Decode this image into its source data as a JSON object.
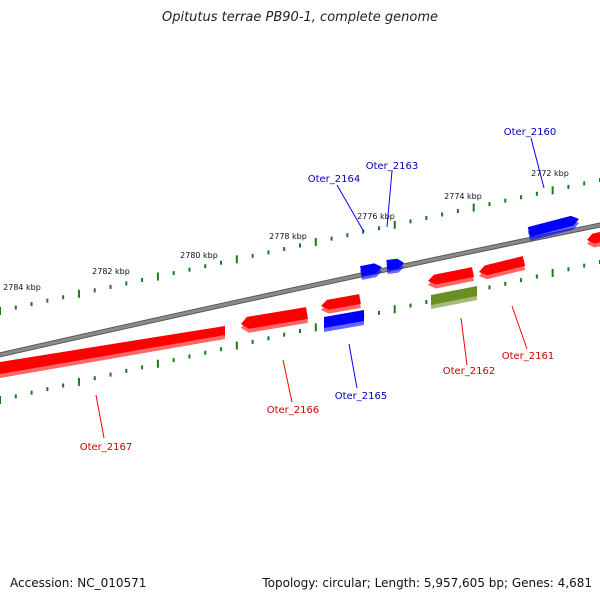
{
  "title": "Opitutus terrae PB90-1, complete genome",
  "footer": {
    "accession": "Accession: NC_010571",
    "topology": "Topology: circular; Length: 5,957,605 bp; Genes: 4,681"
  },
  "colors": {
    "background": "#ffffff",
    "backbone": "#8a8a8a",
    "tick": "#1a7a1a",
    "gene_red": "#ff0000",
    "gene_blue": "#0000ff",
    "gene_olive": "#6b8e23",
    "label_red": "#cc0000",
    "label_blue": "#0000bb"
  },
  "axis": {
    "unit": "kbp",
    "tick_labels": [
      "2772 kbp",
      "2774 kbp",
      "2776 kbp",
      "2778 kbp",
      "2780 kbp",
      "2782 kbp",
      "2784 kbp"
    ]
  },
  "genes": [
    {
      "id": "Oter_2160",
      "strand": "+",
      "color": "blue"
    },
    {
      "id": "Oter_2161",
      "strand": "-",
      "color": "red"
    },
    {
      "id": "Oter_2162",
      "strand": "-",
      "color": "olive"
    },
    {
      "id": "Oter_2163",
      "strand": "+",
      "color": "blue"
    },
    {
      "id": "Oter_2164",
      "strand": "+",
      "color": "blue"
    },
    {
      "id": "Oter_2165",
      "strand": "-",
      "color": "blue"
    },
    {
      "id": "Oter_2166",
      "strand": "-",
      "color": "red"
    },
    {
      "id": "Oter_2167",
      "strand": "-",
      "color": "red"
    }
  ],
  "unlabeled_genes": [
    {
      "strand": "-",
      "color": "red"
    },
    {
      "strand": "-",
      "color": "red"
    },
    {
      "strand": "-",
      "color": "red"
    }
  ]
}
